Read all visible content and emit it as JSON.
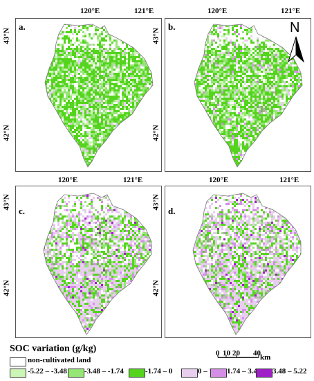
{
  "panels": [
    {
      "letter": "a.",
      "lon1": "120°E",
      "lon2": "121°E",
      "lat1": "43°N",
      "lat2": "42°N"
    },
    {
      "letter": "b.",
      "lon1": "120°E",
      "lon2": "121°E",
      "lat1": "43°N",
      "lat2": "42°N"
    },
    {
      "letter": "c.",
      "lon1": "120°E",
      "lon2": "121°E",
      "lat1": "43°N",
      "lat2": "42°N"
    },
    {
      "letter": "d.",
      "lon1": "120°E",
      "lon2": "121°E",
      "lat1": "43°N",
      "lat2": "42°N"
    }
  ],
  "north_arrow": {
    "label": "N"
  },
  "legend": {
    "title": "SOC variation (g/kg)",
    "items": [
      {
        "label": "non-cultivated land",
        "color": "#ffffff"
      },
      {
        "label": "-5.22 – -3.48",
        "color": "#ccf5b8"
      },
      {
        "label": "-3.48 – -1.74",
        "color": "#96e676"
      },
      {
        "label": "-1.74 – 0",
        "color": "#55d41e"
      },
      {
        "label": "0 – 1.74",
        "color": "#e7cdee"
      },
      {
        "label": "1.74 – 3.48",
        "color": "#d48ee6"
      },
      {
        "label": "3.48 – 5.22",
        "color": "#a020c8"
      }
    ]
  },
  "scale_bar": {
    "ticks": [
      "0",
      "10",
      "20",
      "40"
    ],
    "unit": "km"
  }
}
